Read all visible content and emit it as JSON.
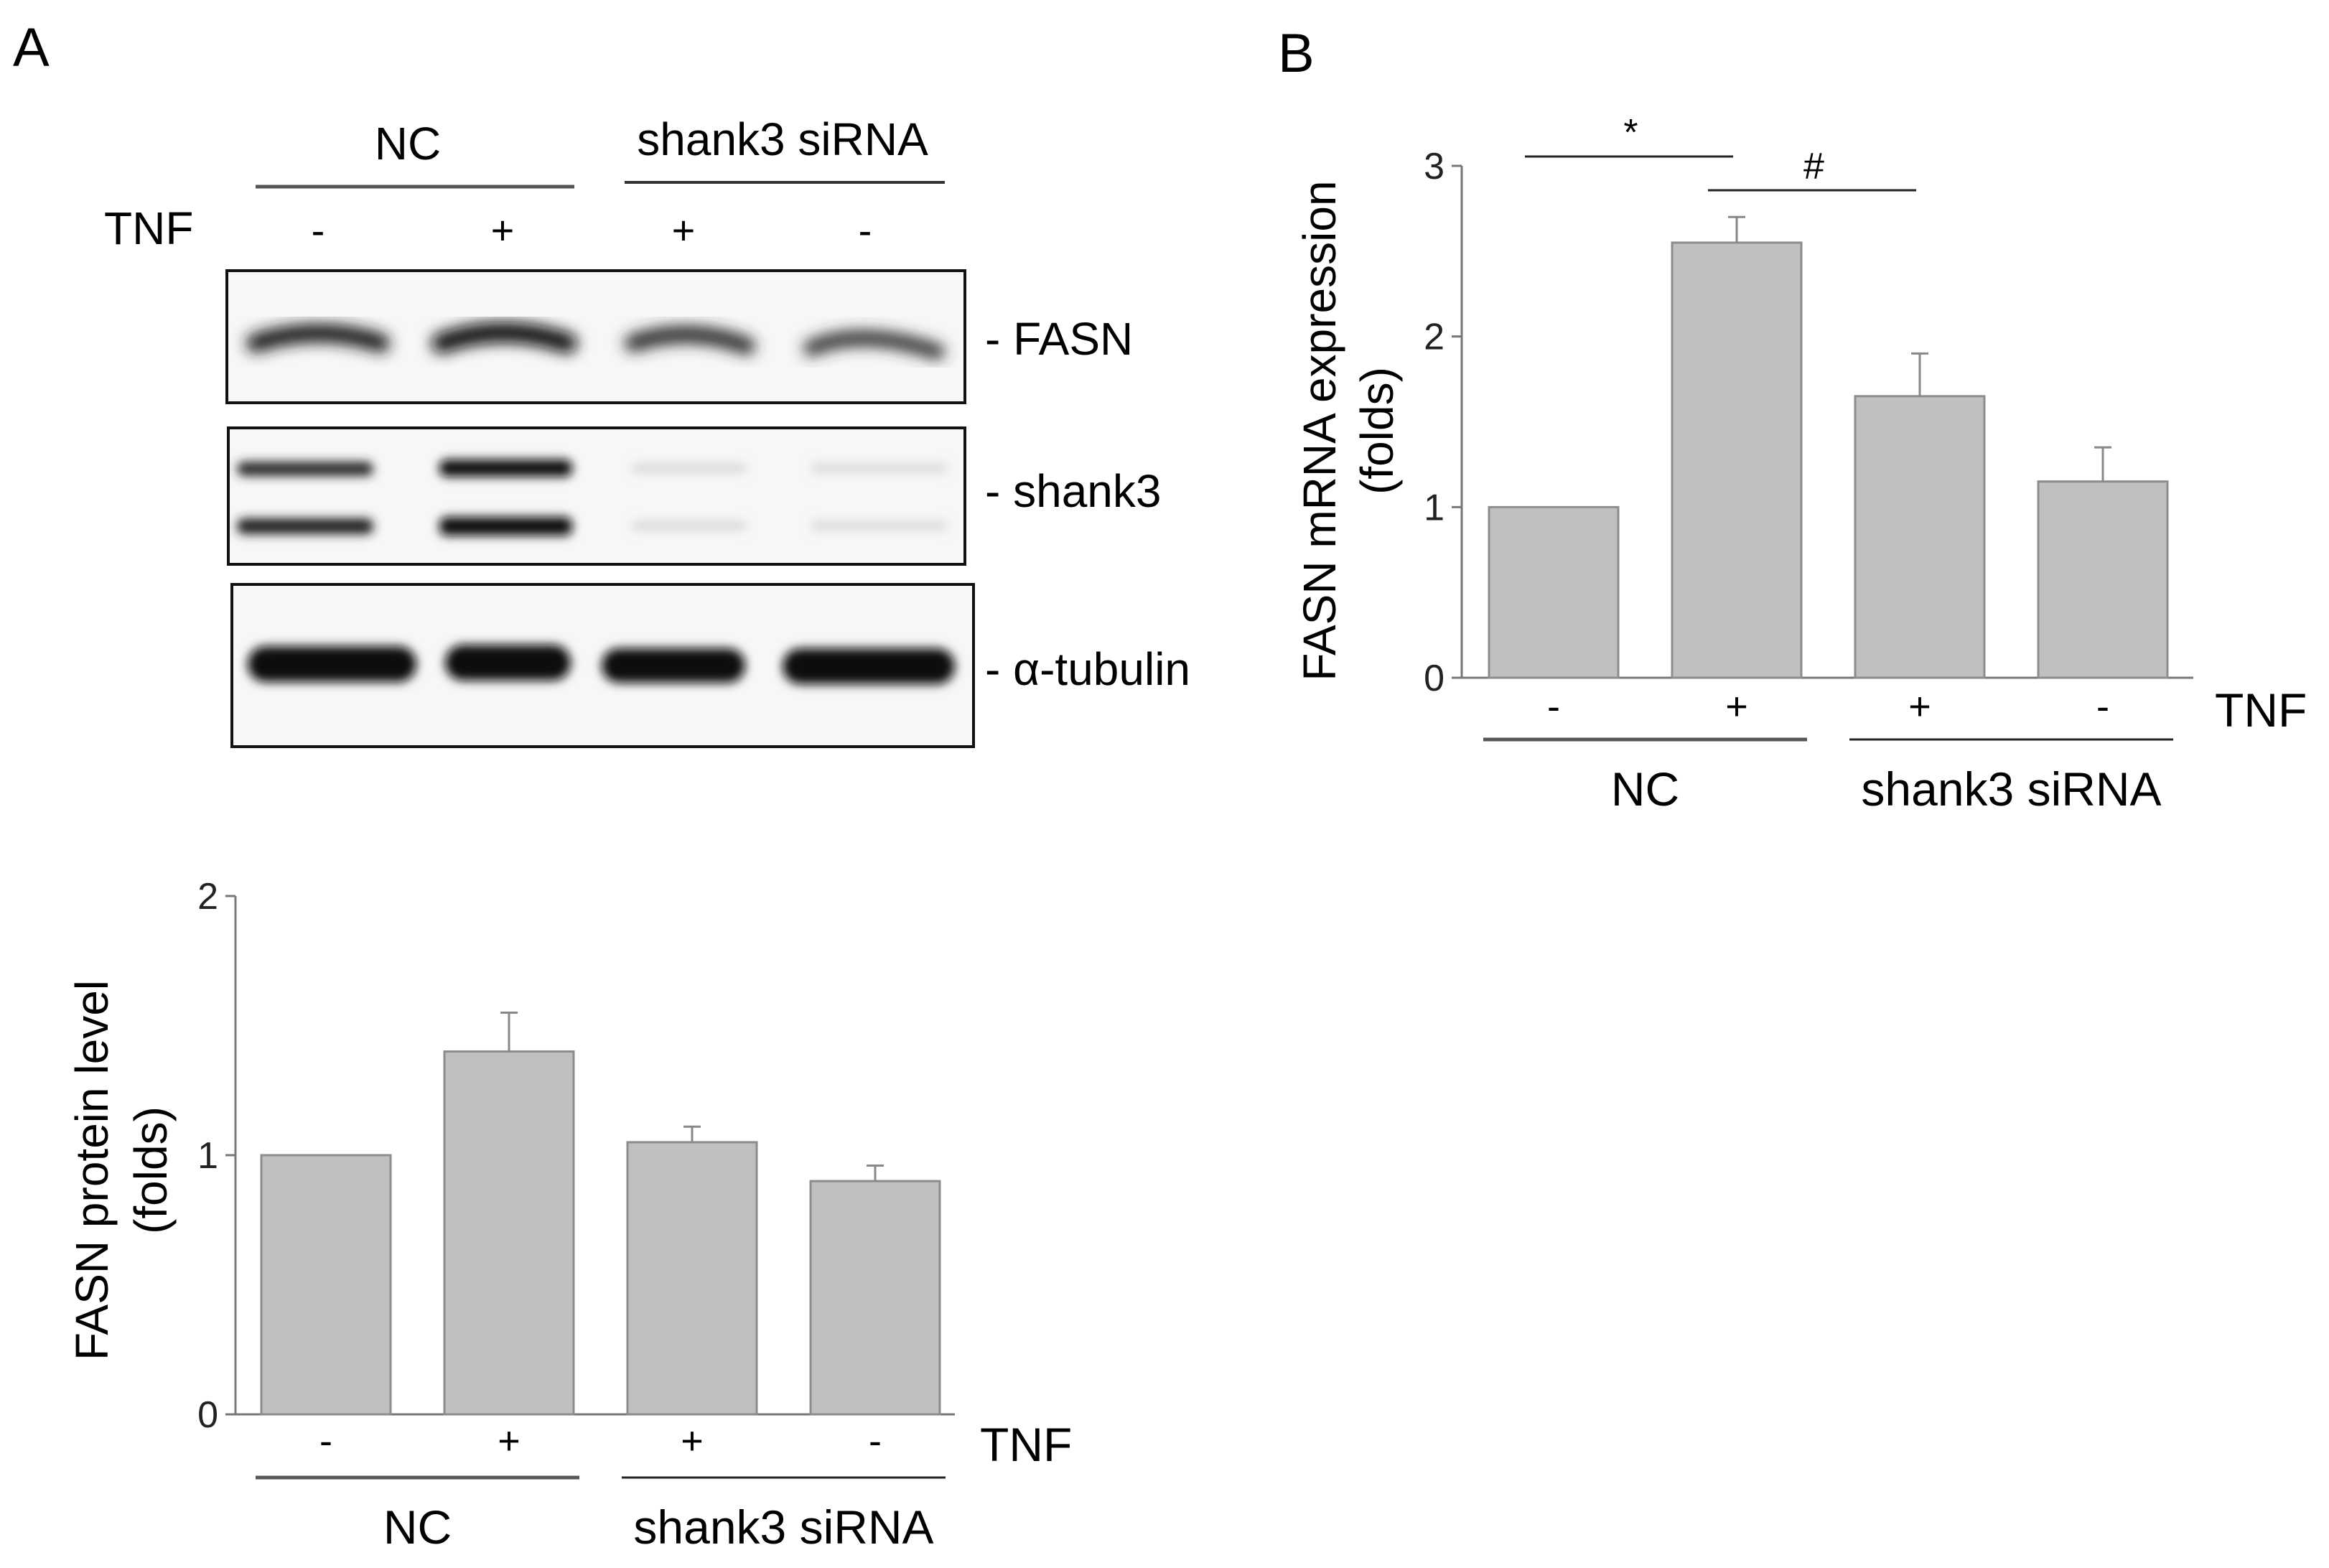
{
  "panels": {
    "a": {
      "letter": "A",
      "blot": {
        "groups": [
          "NC",
          "shank3 siRNA"
        ],
        "treatment_label": "TNF",
        "lane_signs": [
          "-",
          "+",
          "+",
          "-"
        ],
        "bands": [
          "- FASN",
          "- shank3",
          "- α-tubulin"
        ]
      }
    },
    "b": {
      "letter": "B"
    }
  },
  "chart_data": [
    {
      "type": "bar",
      "panel": "A",
      "ylabel": "FASN protein level",
      "ylabel_unit": "(folds)",
      "ylim": [
        0,
        2
      ],
      "yticks": [
        "0",
        "1",
        "2"
      ],
      "categories": [
        "-",
        "+",
        "+",
        "-"
      ],
      "values": [
        1.0,
        1.4,
        1.05,
        0.9
      ],
      "errors": [
        0,
        0.15,
        0.06,
        0.06
      ],
      "bar_color": "#c0c0c0",
      "bar_edge": "#8c8c8c",
      "x_row_label": "TNF",
      "groups": [
        {
          "label": "NC",
          "span": [
            0,
            1
          ]
        },
        {
          "label": "shank3 siRNA",
          "span": [
            2,
            3
          ]
        }
      ],
      "significance": []
    },
    {
      "type": "bar",
      "panel": "B",
      "ylabel": "FASN mRNA expression",
      "ylabel_unit": "(folds)",
      "ylim": [
        0,
        3
      ],
      "yticks": [
        "0",
        "1",
        "2",
        "3"
      ],
      "categories": [
        "-",
        "+",
        "+",
        "-"
      ],
      "values": [
        1.0,
        2.55,
        1.65,
        1.15
      ],
      "errors": [
        0,
        0.15,
        0.25,
        0.2
      ],
      "bar_color": "#c0c0c0",
      "bar_edge": "#8c8c8c",
      "x_row_label": "TNF",
      "groups": [
        {
          "label": "NC",
          "span": [
            0,
            1
          ]
        },
        {
          "label": "shank3 siRNA",
          "span": [
            2,
            3
          ]
        }
      ],
      "significance": [
        {
          "from": 0,
          "to": 1,
          "label": "*"
        },
        {
          "from": 1,
          "to": 2,
          "label": "#"
        }
      ]
    }
  ]
}
